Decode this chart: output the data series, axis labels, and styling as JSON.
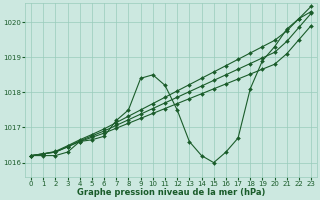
{
  "background_color": "#cce8e0",
  "grid_color": "#99ccbb",
  "line_color": "#1a5c2a",
  "text_color": "#1a5c2a",
  "xlabel": "Graphe pression niveau de la mer (hPa)",
  "xlim": [
    -0.5,
    23.5
  ],
  "ylim": [
    1015.6,
    1020.55
  ],
  "yticks": [
    1016,
    1017,
    1018,
    1019,
    1020
  ],
  "xticks": [
    0,
    1,
    2,
    3,
    4,
    5,
    6,
    7,
    8,
    9,
    10,
    11,
    12,
    13,
    14,
    15,
    16,
    17,
    18,
    19,
    20,
    21,
    22,
    23
  ],
  "series_wavy": [
    1016.2,
    1016.2,
    1016.2,
    1016.3,
    1016.6,
    1016.65,
    1016.75,
    1017.2,
    1017.5,
    1018.4,
    1018.5,
    1018.2,
    1017.5,
    1016.6,
    1016.2,
    1016.0,
    1016.3,
    1016.7,
    1018.1,
    1018.9,
    1019.3,
    1019.8,
    1020.1,
    1020.3
  ],
  "series_straight1": [
    1016.2,
    1016.25,
    1016.3,
    1016.45,
    1016.6,
    1016.72,
    1016.84,
    1016.98,
    1017.12,
    1017.26,
    1017.4,
    1017.54,
    1017.68,
    1017.82,
    1017.96,
    1018.1,
    1018.24,
    1018.38,
    1018.52,
    1018.66,
    1018.8,
    1019.1,
    1019.5,
    1019.9
  ],
  "series_straight2": [
    1016.2,
    1016.25,
    1016.3,
    1016.45,
    1016.62,
    1016.76,
    1016.9,
    1017.06,
    1017.22,
    1017.38,
    1017.54,
    1017.7,
    1017.86,
    1018.02,
    1018.18,
    1018.34,
    1018.5,
    1018.66,
    1018.82,
    1018.98,
    1019.14,
    1019.45,
    1019.85,
    1020.25
  ],
  "series_straight3": [
    1016.2,
    1016.25,
    1016.32,
    1016.48,
    1016.65,
    1016.8,
    1016.96,
    1017.14,
    1017.32,
    1017.5,
    1017.68,
    1017.86,
    1018.04,
    1018.22,
    1018.4,
    1018.58,
    1018.76,
    1018.94,
    1019.12,
    1019.3,
    1019.48,
    1019.75,
    1020.1,
    1020.45
  ],
  "markersize": 2.0,
  "linewidth": 0.8,
  "xlabel_fontsize": 6.0,
  "tick_fontsize": 5.0
}
